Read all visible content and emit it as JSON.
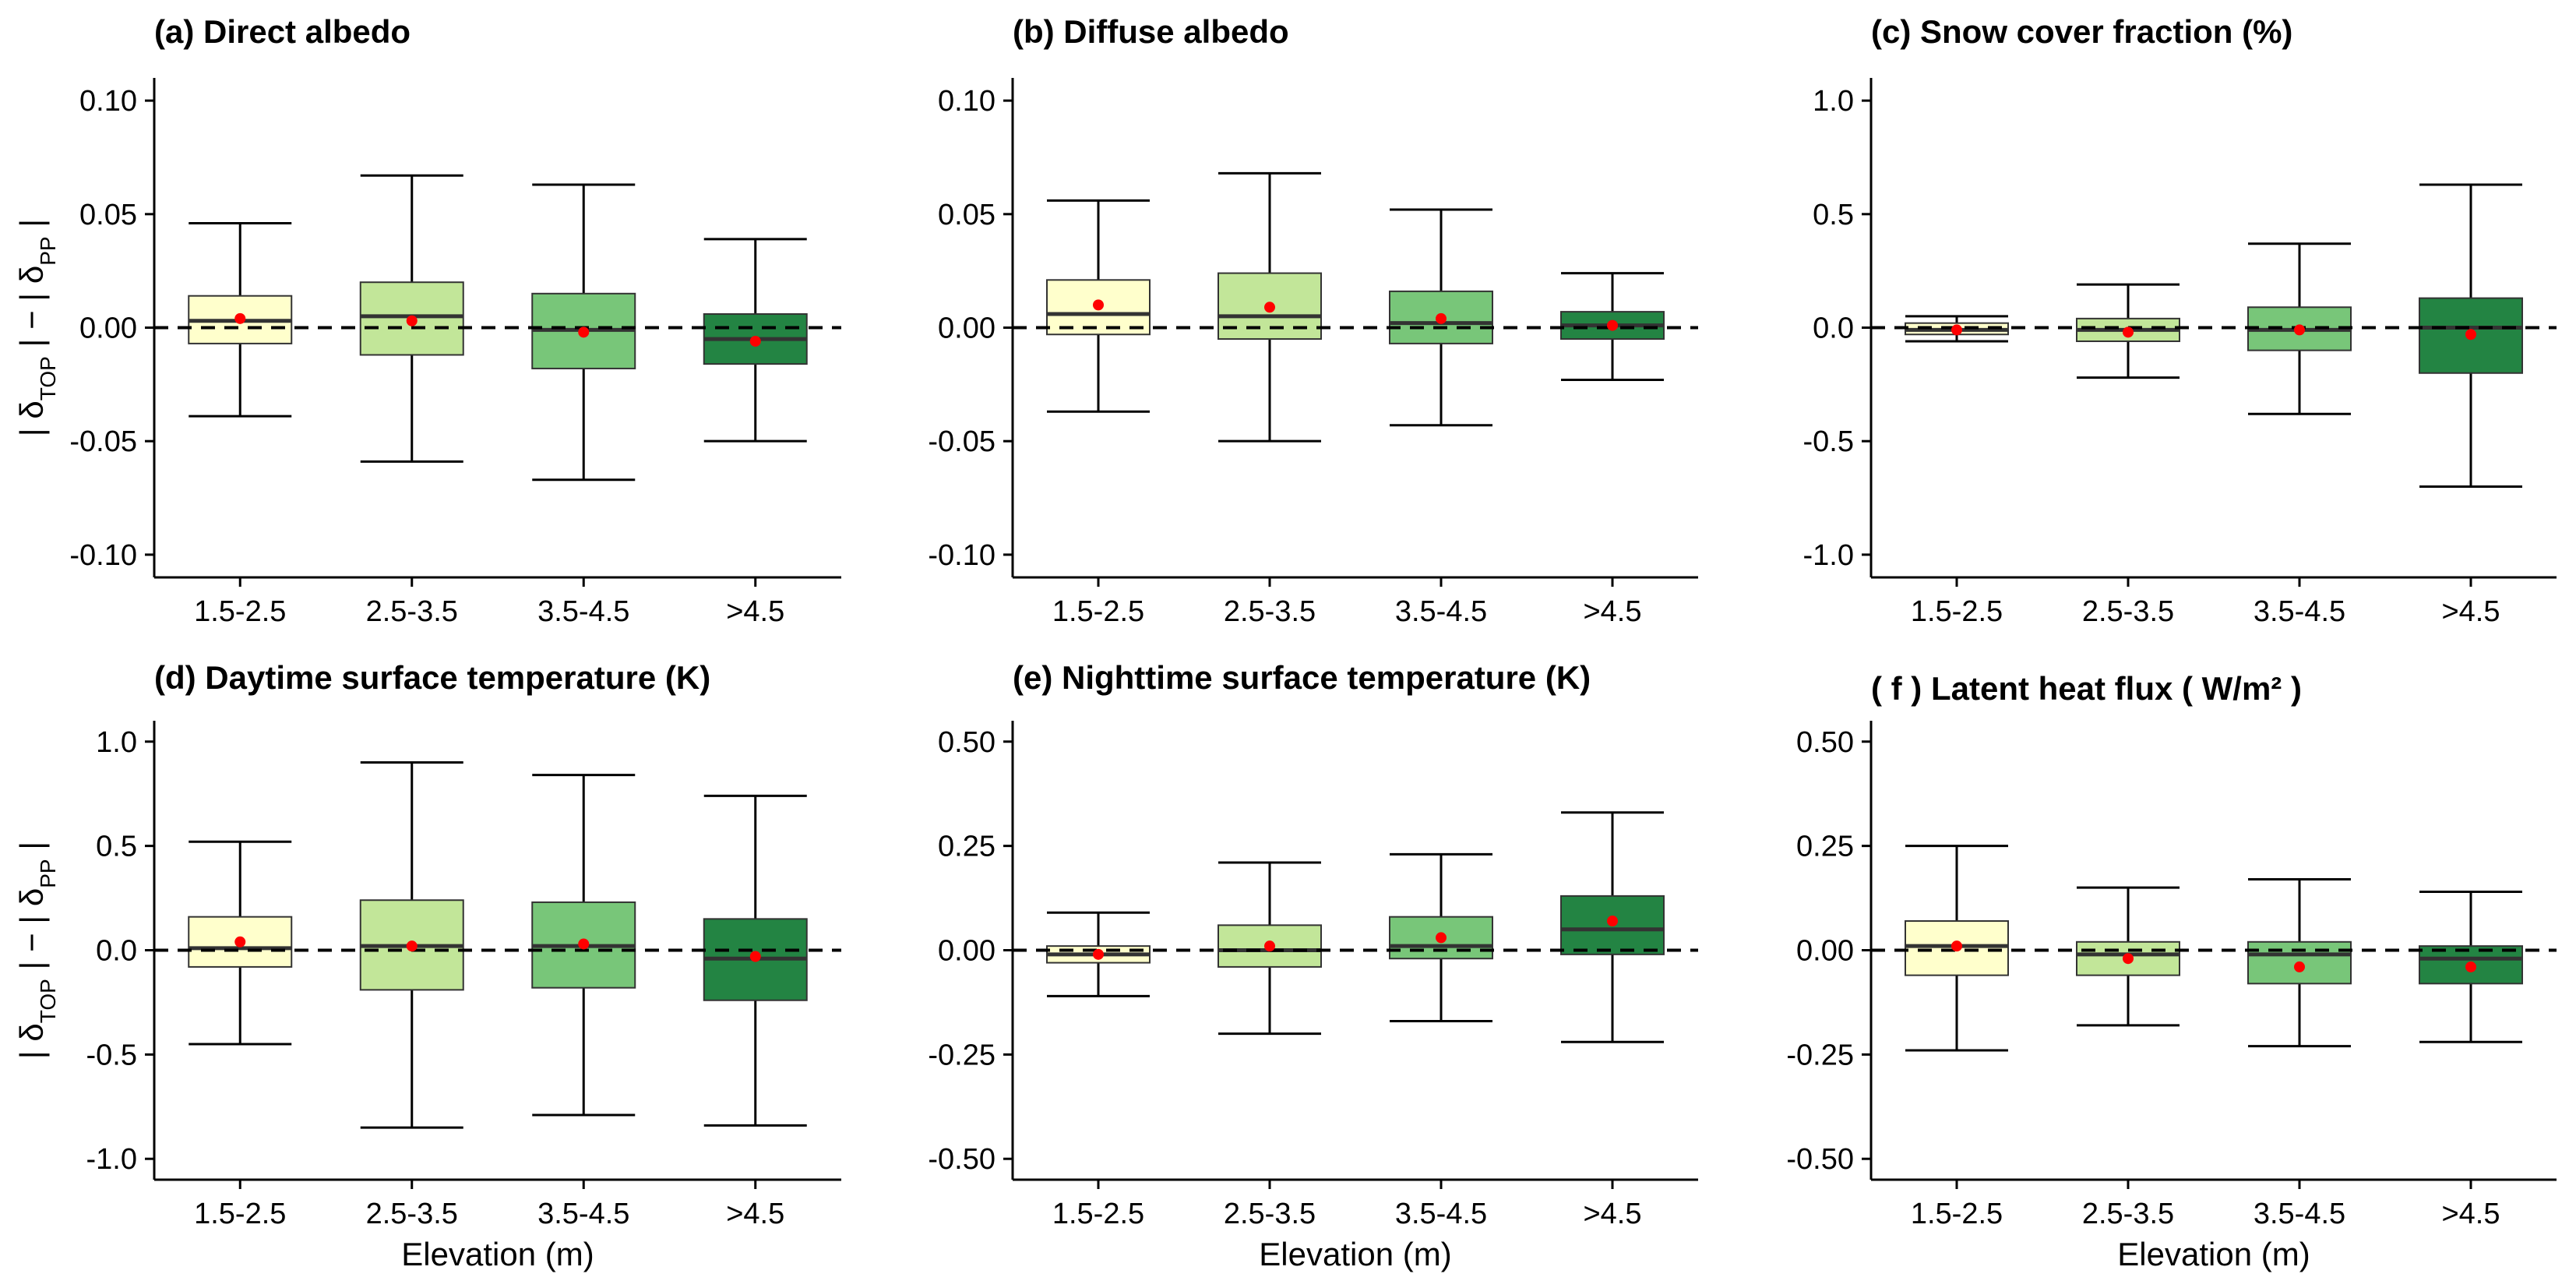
{
  "colors": {
    "box_fill": [
      "#ffffcc",
      "#c2e699",
      "#78c679",
      "#238443"
    ],
    "mean_point": "#ff0000",
    "zero_line": "#000000"
  },
  "y_axis_label": {
    "prefix": "|",
    "delta1": "δ",
    "sub1": "TOP",
    "middle": "| − |",
    "delta2": "δ",
    "sub2": "PP",
    "suffix": "|"
  },
  "x_axis_label": "Elevation (m)",
  "chart_data": [
    {
      "type": "box",
      "title": "(a) Direct albedo",
      "categories": [
        "1.5-2.5",
        "2.5-3.5",
        "3.5-4.5",
        ">4.5"
      ],
      "ylim": [
        -0.11,
        0.11
      ],
      "yticks": [
        -0.1,
        -0.05,
        0.0,
        0.05,
        0.1
      ],
      "ytick_labels": [
        "-0.10",
        "-0.05",
        "0.00",
        "0.05",
        "0.10"
      ],
      "boxes": [
        {
          "whisker_low": -0.039,
          "q1": -0.007,
          "median": 0.003,
          "q3": 0.014,
          "whisker_high": 0.046,
          "mean": 0.004
        },
        {
          "whisker_low": -0.059,
          "q1": -0.012,
          "median": 0.005,
          "q3": 0.02,
          "whisker_high": 0.067,
          "mean": 0.003
        },
        {
          "whisker_low": -0.067,
          "q1": -0.018,
          "median": -0.001,
          "q3": 0.015,
          "whisker_high": 0.063,
          "mean": -0.002
        },
        {
          "whisker_low": -0.05,
          "q1": -0.016,
          "median": -0.005,
          "q3": 0.006,
          "whisker_high": 0.039,
          "mean": -0.006
        }
      ],
      "show_xlabel": false,
      "show_ylabel": true
    },
    {
      "type": "box",
      "title": "(b) Diffuse albedo",
      "categories": [
        "1.5-2.5",
        "2.5-3.5",
        "3.5-4.5",
        ">4.5"
      ],
      "ylim": [
        -0.11,
        0.11
      ],
      "yticks": [
        -0.1,
        -0.05,
        0.0,
        0.05,
        0.1
      ],
      "ytick_labels": [
        "-0.10",
        "-0.05",
        "0.00",
        "0.05",
        "0.10"
      ],
      "boxes": [
        {
          "whisker_low": -0.037,
          "q1": -0.003,
          "median": 0.006,
          "q3": 0.021,
          "whisker_high": 0.056,
          "mean": 0.01
        },
        {
          "whisker_low": -0.05,
          "q1": -0.005,
          "median": 0.005,
          "q3": 0.024,
          "whisker_high": 0.068,
          "mean": 0.009
        },
        {
          "whisker_low": -0.043,
          "q1": -0.007,
          "median": 0.002,
          "q3": 0.016,
          "whisker_high": 0.052,
          "mean": 0.004
        },
        {
          "whisker_low": -0.023,
          "q1": -0.005,
          "median": 0.001,
          "q3": 0.007,
          "whisker_high": 0.024,
          "mean": 0.001
        }
      ],
      "show_xlabel": false,
      "show_ylabel": false
    },
    {
      "type": "box",
      "title": "(c) Snow cover fraction (%)",
      "categories": [
        "1.5-2.5",
        "2.5-3.5",
        "3.5-4.5",
        ">4.5"
      ],
      "ylim": [
        -1.1,
        1.1
      ],
      "yticks": [
        -1.0,
        -0.5,
        0.0,
        0.5,
        1.0
      ],
      "ytick_labels": [
        "-1.0",
        "-0.5",
        "0.0",
        "0.5",
        "1.0"
      ],
      "boxes": [
        {
          "whisker_low": -0.06,
          "q1": -0.03,
          "median": -0.01,
          "q3": 0.02,
          "whisker_high": 0.05,
          "mean": -0.01
        },
        {
          "whisker_low": -0.22,
          "q1": -0.06,
          "median": -0.01,
          "q3": 0.04,
          "whisker_high": 0.19,
          "mean": -0.02
        },
        {
          "whisker_low": -0.38,
          "q1": -0.1,
          "median": -0.01,
          "q3": 0.09,
          "whisker_high": 0.37,
          "mean": -0.01
        },
        {
          "whisker_low": -0.7,
          "q1": -0.2,
          "median": 0.0,
          "q3": 0.13,
          "whisker_high": 0.63,
          "mean": -0.03
        }
      ],
      "show_xlabel": false,
      "show_ylabel": false
    },
    {
      "type": "box",
      "title": "(d) Daytime surface temperature (K)",
      "categories": [
        "1.5-2.5",
        "2.5-3.5",
        "3.5-4.5",
        ">4.5"
      ],
      "ylim": [
        -1.1,
        1.1
      ],
      "yticks": [
        -1.0,
        -0.5,
        0.0,
        0.5,
        1.0
      ],
      "ytick_labels": [
        "-1.0",
        "-0.5",
        "0.0",
        "0.5",
        "1.0"
      ],
      "boxes": [
        {
          "whisker_low": -0.45,
          "q1": -0.08,
          "median": 0.01,
          "q3": 0.16,
          "whisker_high": 0.52,
          "mean": 0.04
        },
        {
          "whisker_low": -0.85,
          "q1": -0.19,
          "median": 0.02,
          "q3": 0.24,
          "whisker_high": 0.9,
          "mean": 0.02
        },
        {
          "whisker_low": -0.79,
          "q1": -0.18,
          "median": 0.02,
          "q3": 0.23,
          "whisker_high": 0.84,
          "mean": 0.03
        },
        {
          "whisker_low": -0.84,
          "q1": -0.24,
          "median": -0.04,
          "q3": 0.15,
          "whisker_high": 0.74,
          "mean": -0.03
        }
      ],
      "show_xlabel": true,
      "show_ylabel": true
    },
    {
      "type": "box",
      "title": "(e) Nighttime surface temperature (K)",
      "categories": [
        "1.5-2.5",
        "2.5-3.5",
        "3.5-4.5",
        ">4.5"
      ],
      "ylim": [
        -0.55,
        0.55
      ],
      "yticks": [
        -0.5,
        -0.25,
        0.0,
        0.25,
        0.5
      ],
      "ytick_labels": [
        "-0.50",
        "-0.25",
        "0.00",
        "0.25",
        "0.50"
      ],
      "boxes": [
        {
          "whisker_low": -0.11,
          "q1": -0.03,
          "median": -0.01,
          "q3": 0.01,
          "whisker_high": 0.09,
          "mean": -0.01
        },
        {
          "whisker_low": -0.2,
          "q1": -0.04,
          "median": 0.0,
          "q3": 0.06,
          "whisker_high": 0.21,
          "mean": 0.01
        },
        {
          "whisker_low": -0.17,
          "q1": -0.02,
          "median": 0.01,
          "q3": 0.08,
          "whisker_high": 0.23,
          "mean": 0.03
        },
        {
          "whisker_low": -0.22,
          "q1": -0.01,
          "median": 0.05,
          "q3": 0.13,
          "whisker_high": 0.33,
          "mean": 0.07
        }
      ],
      "show_xlabel": true,
      "show_ylabel": false
    },
    {
      "type": "box",
      "title": "( f ) Latent heat flux ( W/m² )",
      "categories": [
        "1.5-2.5",
        "2.5-3.5",
        "3.5-4.5",
        ">4.5"
      ],
      "ylim": [
        -0.55,
        0.55
      ],
      "yticks": [
        -0.5,
        -0.25,
        0.0,
        0.25,
        0.5
      ],
      "ytick_labels": [
        "-0.50",
        "-0.25",
        "0.00",
        "0.25",
        "0.50"
      ],
      "boxes": [
        {
          "whisker_low": -0.24,
          "q1": -0.06,
          "median": 0.01,
          "q3": 0.07,
          "whisker_high": 0.25,
          "mean": 0.01
        },
        {
          "whisker_low": -0.18,
          "q1": -0.06,
          "median": -0.01,
          "q3": 0.02,
          "whisker_high": 0.15,
          "mean": -0.02
        },
        {
          "whisker_low": -0.23,
          "q1": -0.08,
          "median": -0.01,
          "q3": 0.02,
          "whisker_high": 0.17,
          "mean": -0.04
        },
        {
          "whisker_low": -0.22,
          "q1": -0.08,
          "median": -0.02,
          "q3": 0.01,
          "whisker_high": 0.14,
          "mean": -0.04
        }
      ],
      "show_xlabel": true,
      "show_ylabel": false
    }
  ]
}
